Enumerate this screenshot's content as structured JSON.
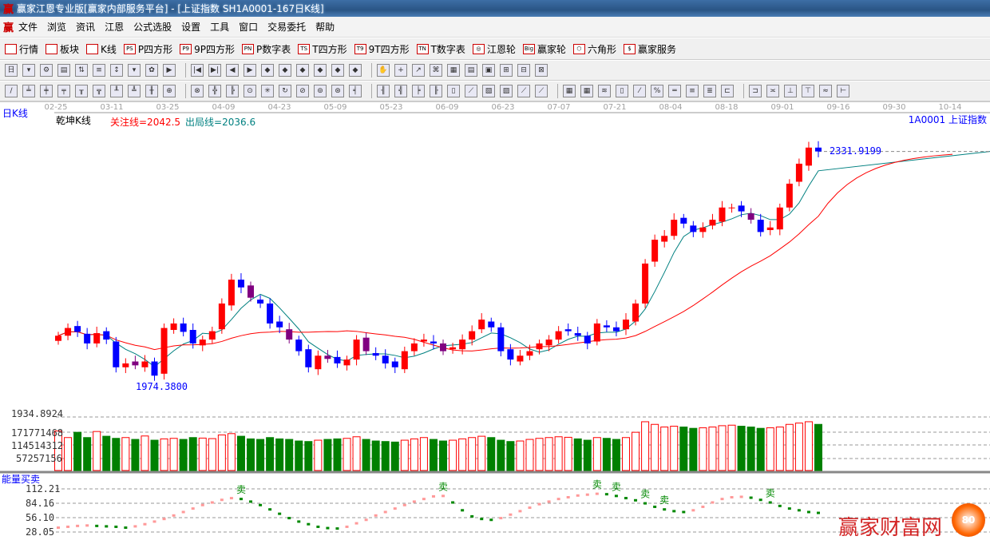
{
  "window": {
    "title": "赢家江恩专业版[赢家内部服务平台] - [上证指数  SH1A0001-167日K线]",
    "logo": "赢"
  },
  "menu": [
    "文件",
    "浏览",
    "资讯",
    "江恩",
    "公式选股",
    "设置",
    "工具",
    "窗口",
    "交易委托",
    "帮助"
  ],
  "toolbar1": [
    {
      "icon": "grid-icon",
      "code": "",
      "label": "行情"
    },
    {
      "icon": "blocks-icon",
      "code": "",
      "label": "板块"
    },
    {
      "icon": "candles-icon",
      "code": "",
      "label": "K线"
    },
    {
      "icon": "ps-icon",
      "code": "PS",
      "label": "P四方形"
    },
    {
      "icon": "p9-icon",
      "code": "P9",
      "label": "9P四方形"
    },
    {
      "icon": "pn-icon",
      "code": "PN",
      "label": "P数字表"
    },
    {
      "icon": "ts-icon",
      "code": "TS",
      "label": "T四方形"
    },
    {
      "icon": "t9-icon",
      "code": "T9",
      "label": "9T四方形"
    },
    {
      "icon": "tn-icon",
      "code": "TN",
      "label": "T数字表"
    },
    {
      "icon": "gann-wheel-icon",
      "code": "◎",
      "label": "江恩轮"
    },
    {
      "icon": "big-wheel-icon",
      "code": "Big",
      "label": "赢家轮"
    },
    {
      "icon": "hexagon-icon",
      "code": "⬡",
      "label": "六角形"
    },
    {
      "icon": "dollar-icon",
      "code": "$",
      "label": "赢家服务"
    }
  ],
  "toolbar2_icons": [
    "日",
    "▾",
    "⚙",
    "▤",
    "⇅",
    "≡",
    "↕",
    "▾",
    "✿",
    "▶",
    "|◀",
    "▶|",
    "◀",
    "▶",
    "◆",
    "◆",
    "◆",
    "◆",
    "◆",
    "◆",
    "✋",
    "+",
    "↗",
    "⌘",
    "▦",
    "▤",
    "▣",
    "⊞",
    "⊟",
    "⊠"
  ],
  "toolbar3_icons": [
    "/",
    "╧",
    "╪",
    "╤",
    "╥",
    "╦",
    "╨",
    "╩",
    "╫",
    "⊕",
    "⊗",
    "╬",
    "╠",
    "⊙",
    "✳",
    "↻",
    "⊘",
    "⊚",
    "⊛",
    "╡",
    "╢",
    "╣",
    "╞",
    "╟",
    "▯",
    "⟋",
    "▧",
    "▨",
    "⟋",
    "⟋",
    "▦",
    "▦",
    "≋",
    "▯",
    "⁄",
    "%",
    "═",
    "≡",
    "≣",
    "⊏",
    "⊐",
    "≍",
    "⊥",
    "⊤",
    "≈",
    "⊢"
  ],
  "date_axis": [
    "02-25",
    "03-11",
    "03-25",
    "04-09",
    "04-23",
    "05-09",
    "05-23",
    "06-09",
    "06-23",
    "07-07",
    "07-21",
    "08-04",
    "08-18",
    "09-01",
    "09-16",
    "09-30",
    "10-14"
  ],
  "chart_header": {
    "period": "日K线",
    "indicator": "乾坤K线",
    "focus_line": "关注线=2042.5",
    "exit_line": "出局线=2036.6",
    "symbol": "1A0001  上证指数"
  },
  "price_labels": {
    "high": "2331.9199",
    "low": "1974.3800"
  },
  "volume_axis": [
    "1934.8924",
    "171771468",
    "114514312",
    "57257156"
  ],
  "energy": {
    "title": "能量买卖",
    "axis": [
      "112.21",
      "84.16",
      "56.10",
      "28.05"
    ],
    "sell_label": "卖"
  },
  "colors": {
    "up": "#ff0000",
    "down": "#0000ff",
    "down_alt": "#800080",
    "vol_down": "#008000",
    "ma_short": "#008080",
    "ma_long": "#ff0000",
    "axis_text": "#a0a0a0",
    "label_blue": "#0000ff"
  },
  "chart_data": {
    "type": "candlestick",
    "closes": [
      2046,
      2058,
      2052,
      2034,
      2050,
      2040,
      1997,
      2003,
      2000,
      2006,
      1984,
      2058,
      2065,
      2052,
      2034,
      2040,
      2053,
      2096,
      2133,
      2121,
      2105,
      2096,
      2065,
      2059,
      2040,
      2022,
      1997,
      2015,
      2010,
      2003,
      2009,
      2040,
      2022,
      2015,
      2003,
      1997,
      2022,
      2034,
      2040,
      2034,
      2022,
      2028,
      2040,
      2053,
      2071,
      2059,
      2022,
      2009,
      2015,
      2022,
      2034,
      2040,
      2053,
      2053,
      2046,
      2034,
      2065,
      2059,
      2053,
      2071,
      2096,
      2158,
      2195,
      2201,
      2226,
      2220,
      2207,
      2214,
      2226,
      2245,
      2245,
      2239,
      2226,
      2207,
      2214,
      2245,
      2282,
      2313,
      2338,
      2332
    ],
    "volumes": [
      150,
      125,
      145,
      125,
      148,
      130,
      122,
      125,
      118,
      131,
      115,
      120,
      122,
      118,
      125,
      123,
      121,
      135,
      140,
      130,
      120,
      118,
      125,
      120,
      118,
      112,
      110,
      115,
      118,
      120,
      122,
      128,
      118,
      112,
      110,
      108,
      115,
      120,
      125,
      118,
      112,
      115,
      120,
      125,
      130,
      125,
      115,
      110,
      112,
      118,
      122,
      125,
      128,
      126,
      120,
      115,
      125,
      122,
      118,
      125,
      145,
      185,
      175,
      165,
      168,
      165,
      160,
      162,
      165,
      170,
      172,
      168,
      165,
      160,
      162,
      165,
      175,
      180,
      185,
      175
    ],
    "energy": [
      22,
      24,
      26,
      27,
      26,
      25,
      24,
      22,
      25,
      30,
      36,
      42,
      50,
      58,
      66,
      74,
      80,
      86,
      90,
      88,
      82,
      74,
      64,
      54,
      44,
      36,
      30,
      24,
      21,
      20,
      24,
      32,
      40,
      50,
      58,
      66,
      74,
      82,
      88,
      94,
      95,
      80,
      62,
      48,
      42,
      40,
      44,
      52,
      60,
      68,
      76,
      82,
      88,
      92,
      96,
      98,
      100,
      99,
      95,
      90,
      85,
      78,
      70,
      64,
      60,
      58,
      62,
      70,
      80,
      88,
      92,
      93,
      91,
      86,
      80,
      72,
      66,
      62,
      58,
      56
    ],
    "sell_signals": [
      19,
      40,
      56,
      58,
      61,
      63,
      74
    ],
    "ylim": [
      1974.38,
      2331.92
    ]
  },
  "watermark": {
    "text": "赢家财富网",
    "badge": "80"
  }
}
